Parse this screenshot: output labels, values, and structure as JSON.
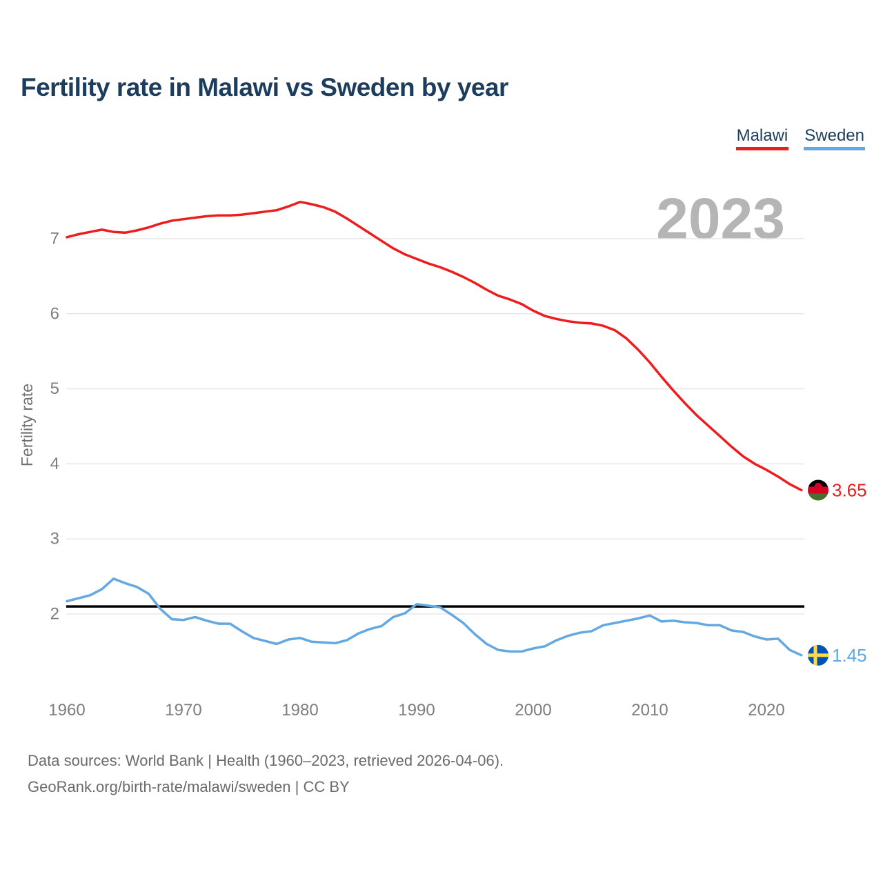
{
  "header": {
    "title": "Fertility rate in Malawi vs Sweden by year"
  },
  "legend": {
    "items": [
      {
        "label": "Malawi",
        "color": "#ee1c1c"
      },
      {
        "label": "Sweden",
        "color": "#63a8e1"
      }
    ]
  },
  "watermark": "2023",
  "chart_data": {
    "type": "line",
    "title": "Fertility rate in Malawi vs Sweden by year",
    "xlabel": "",
    "ylabel": "Fertility rate",
    "grid": "horizontal",
    "legend_position": "top-right",
    "ylim": [
      1.2,
      7.7
    ],
    "yticks": [
      2,
      3,
      4,
      5,
      6,
      7
    ],
    "xticks": [
      1960,
      1970,
      1980,
      1990,
      2000,
      2010,
      2020
    ],
    "reference_line": {
      "value": 2.1,
      "color": "#000000"
    },
    "x": [
      1960,
      1961,
      1962,
      1963,
      1964,
      1965,
      1966,
      1967,
      1968,
      1969,
      1970,
      1971,
      1972,
      1973,
      1974,
      1975,
      1976,
      1977,
      1978,
      1979,
      1980,
      1981,
      1982,
      1983,
      1984,
      1985,
      1986,
      1987,
      1988,
      1989,
      1990,
      1991,
      1992,
      1993,
      1994,
      1995,
      1996,
      1997,
      1998,
      1999,
      2000,
      2001,
      2002,
      2003,
      2004,
      2005,
      2006,
      2007,
      2008,
      2009,
      2010,
      2011,
      2012,
      2013,
      2014,
      2015,
      2016,
      2017,
      2018,
      2019,
      2020,
      2021,
      2022,
      2023
    ],
    "series": [
      {
        "name": "Malawi",
        "color": "#ee1c1c",
        "flag": "malawi",
        "end_label": "3.65",
        "values": [
          7.02,
          7.06,
          7.09,
          7.12,
          7.09,
          7.08,
          7.11,
          7.15,
          7.2,
          7.24,
          7.26,
          7.28,
          7.3,
          7.31,
          7.31,
          7.32,
          7.34,
          7.36,
          7.38,
          7.43,
          7.49,
          7.46,
          7.42,
          7.36,
          7.27,
          7.17,
          7.07,
          6.97,
          6.87,
          6.79,
          6.73,
          6.67,
          6.62,
          6.56,
          6.49,
          6.41,
          6.32,
          6.24,
          6.19,
          6.13,
          6.04,
          5.97,
          5.93,
          5.9,
          5.88,
          5.87,
          5.84,
          5.78,
          5.67,
          5.52,
          5.35,
          5.16,
          4.98,
          4.81,
          4.65,
          4.51,
          4.37,
          4.23,
          4.1,
          4.0,
          3.92,
          3.83,
          3.73,
          3.65
        ]
      },
      {
        "name": "Sweden",
        "color": "#63a8e1",
        "flag": "sweden",
        "end_label": "1.45",
        "values": [
          2.17,
          2.21,
          2.25,
          2.33,
          2.47,
          2.41,
          2.36,
          2.27,
          2.07,
          1.93,
          1.92,
          1.96,
          1.91,
          1.87,
          1.87,
          1.77,
          1.68,
          1.64,
          1.6,
          1.66,
          1.68,
          1.63,
          1.62,
          1.61,
          1.65,
          1.74,
          1.8,
          1.84,
          1.96,
          2.01,
          2.13,
          2.11,
          2.09,
          1.99,
          1.88,
          1.73,
          1.6,
          1.52,
          1.5,
          1.5,
          1.54,
          1.57,
          1.65,
          1.71,
          1.75,
          1.77,
          1.85,
          1.88,
          1.91,
          1.94,
          1.98,
          1.9,
          1.91,
          1.89,
          1.88,
          1.85,
          1.85,
          1.78,
          1.76,
          1.7,
          1.66,
          1.67,
          1.52,
          1.45
        ]
      }
    ],
    "flag_colors": {
      "malawi": {
        "black": "#000000",
        "red": "#d80027",
        "green": "#496e2d"
      },
      "sweden": {
        "blue": "#0052b4",
        "yellow": "#ffda44"
      }
    }
  },
  "footer": {
    "line1": "Data sources: World Bank | Health (1960–2023, retrieved 2026-04-06).",
    "line2": "GeoRank.org/birth-rate/malawi/sweden | CC BY"
  }
}
